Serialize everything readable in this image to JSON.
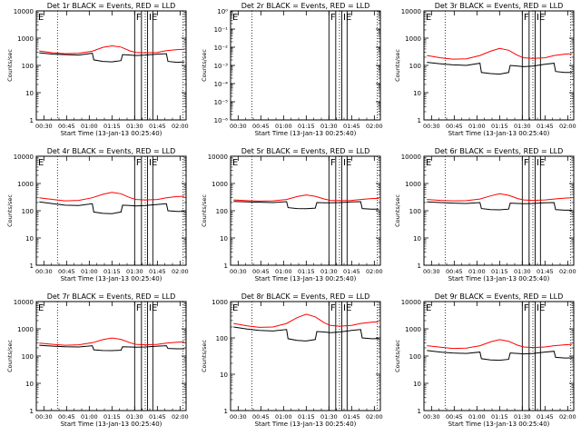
{
  "figure": {
    "axis_ylabel": "Counts/sec",
    "xlabel": "Start Time (13-Jan-13 00:25:40)",
    "xtick_labels": [
      "00:30",
      "00:45",
      "01:00",
      "01:15",
      "01:30",
      "01:45",
      "02:00"
    ],
    "colors": {
      "events": "#000000",
      "lld": "#ff0000",
      "background": "#ffffff"
    }
  },
  "chart_data": [
    {
      "type": "line",
      "title": "Det 1r BLACK = Events, RED = LLD",
      "ylabel": "Counts/sec",
      "xlabel": "Start Time (13-Jan-13 00:25:40)",
      "yscale": "log",
      "ylim": [
        1,
        10000
      ],
      "yticks": [
        1,
        10,
        100,
        1000,
        10000
      ],
      "ytick_labels": [
        "1",
        "10",
        "100",
        "1000",
        "10000"
      ],
      "xlim": [
        "00:25",
        "02:04"
      ],
      "xticks": [
        "00:30",
        "00:45",
        "01:00",
        "01:15",
        "01:30",
        "01:45",
        "02:00"
      ],
      "flag_labels": [
        "E",
        "F",
        "IE"
      ],
      "series": [
        {
          "color": "#000000",
          "x": [
            "00:27",
            "00:36",
            "00:44",
            "00:53",
            "01:02",
            "01:03",
            "01:09",
            "01:15",
            "01:21",
            "01:22",
            "01:27",
            "01:31",
            "01:37",
            "01:45",
            "01:51",
            "01:52",
            "01:58",
            "02:03"
          ],
          "values": [
            290,
            260,
            250,
            240,
            280,
            160,
            140,
            135,
            150,
            250,
            240,
            230,
            240,
            260,
            270,
            140,
            130,
            135
          ]
        },
        {
          "color": "#ff0000",
          "x": [
            "00:27",
            "00:36",
            "00:44",
            "00:53",
            "01:02",
            "01:09",
            "01:15",
            "01:21",
            "01:27",
            "01:31",
            "01:37",
            "01:45",
            "01:51",
            "01:58",
            "02:03"
          ],
          "values": [
            340,
            290,
            270,
            280,
            330,
            460,
            520,
            470,
            340,
            300,
            290,
            300,
            350,
            380,
            390
          ]
        }
      ]
    },
    {
      "type": "line",
      "title": "Det 2r BLACK = Events, RED = LLD",
      "ylabel": "Counts/sec",
      "xlabel": "Start Time (13-Jan-13 00:25:40)",
      "yscale": "log",
      "ylim": [
        1e-06,
        1
      ],
      "yticks": [
        1e-06,
        1e-05,
        0.0001,
        0.001,
        0.01,
        0.1,
        1
      ],
      "ytick_labels": [
        "10⁻⁶",
        "10⁻⁵",
        "10⁻⁴",
        "10⁻³",
        "10⁻²",
        "10⁻¹",
        "10⁰"
      ],
      "xlim": [
        "00:25",
        "02:04"
      ],
      "xticks": [
        "00:30",
        "00:45",
        "01:00",
        "01:15",
        "01:30",
        "01:45",
        "02:00"
      ],
      "flag_labels": [
        "E",
        "F",
        "IE"
      ],
      "series": []
    },
    {
      "type": "line",
      "title": "Det 3r BLACK = Events, RED = LLD",
      "ylabel": "Counts/sec",
      "xlabel": "Start Time (13-Jan-13 00:25:40)",
      "yscale": "log",
      "ylim": [
        1,
        10000
      ],
      "yticks": [
        1,
        10,
        100,
        1000,
        10000
      ],
      "ytick_labels": [
        "1",
        "10",
        "100",
        "1000",
        "10000"
      ],
      "xlim": [
        "00:25",
        "02:04"
      ],
      "xticks": [
        "00:30",
        "00:45",
        "01:00",
        "01:15",
        "01:30",
        "01:45",
        "02:00"
      ],
      "flag_labels": [
        "E",
        "F",
        "IE"
      ],
      "series": [
        {
          "color": "#000000",
          "x": [
            "00:27",
            "00:36",
            "00:44",
            "00:53",
            "01:02",
            "01:03",
            "01:09",
            "01:15",
            "01:21",
            "01:22",
            "01:27",
            "01:31",
            "01:37",
            "01:45",
            "01:51",
            "01:52",
            "01:58",
            "02:03"
          ],
          "values": [
            130,
            115,
            105,
            100,
            120,
            55,
            50,
            48,
            55,
            100,
            95,
            90,
            95,
            110,
            120,
            60,
            55,
            55
          ]
        },
        {
          "color": "#ff0000",
          "x": [
            "00:27",
            "00:36",
            "00:44",
            "00:53",
            "01:02",
            "01:09",
            "01:15",
            "01:21",
            "01:27",
            "01:31",
            "01:37",
            "01:45",
            "01:51",
            "01:58",
            "02:03"
          ],
          "values": [
            230,
            190,
            170,
            175,
            230,
            330,
            420,
            360,
            230,
            190,
            180,
            190,
            230,
            260,
            270
          ]
        }
      ]
    },
    {
      "type": "line",
      "title": "Det 4r BLACK = Events, RED = LLD",
      "ylabel": "Counts/sec",
      "xlabel": "Start Time (13-Jan-13 00:25:40)",
      "yscale": "log",
      "ylim": [
        1,
        10000
      ],
      "yticks": [
        1,
        10,
        100,
        1000,
        10000
      ],
      "ytick_labels": [
        "1",
        "10",
        "100",
        "1000",
        "10000"
      ],
      "xlim": [
        "00:25",
        "02:04"
      ],
      "xticks": [
        "00:30",
        "00:45",
        "01:00",
        "01:15",
        "01:30",
        "01:45",
        "02:00"
      ],
      "flag_labels": [
        "E",
        "F",
        "IE"
      ],
      "series": [
        {
          "color": "#000000",
          "x": [
            "00:27",
            "00:36",
            "00:44",
            "00:53",
            "01:02",
            "01:03",
            "01:09",
            "01:15",
            "01:21",
            "01:22",
            "01:27",
            "01:31",
            "01:37",
            "01:45",
            "01:51",
            "01:52",
            "01:58",
            "02:03"
          ],
          "values": [
            210,
            180,
            160,
            155,
            180,
            90,
            80,
            78,
            90,
            160,
            155,
            150,
            155,
            170,
            180,
            100,
            95,
            95
          ]
        },
        {
          "color": "#ff0000",
          "x": [
            "00:27",
            "00:36",
            "00:44",
            "00:53",
            "01:02",
            "01:09",
            "01:15",
            "01:21",
            "01:27",
            "01:31",
            "01:37",
            "01:45",
            "01:51",
            "01:58",
            "02:03"
          ],
          "values": [
            300,
            260,
            230,
            240,
            300,
            400,
            470,
            420,
            300,
            260,
            250,
            260,
            300,
            330,
            340
          ]
        }
      ]
    },
    {
      "type": "line",
      "title": "Det 5r BLACK = Events, RED = LLD",
      "ylabel": "Counts/sec",
      "xlabel": "Start Time (13-Jan-13 00:25:40)",
      "yscale": "log",
      "ylim": [
        1,
        10000
      ],
      "yticks": [
        1,
        10,
        100,
        1000,
        10000
      ],
      "ytick_labels": [
        "1",
        "10",
        "100",
        "1000",
        "10000"
      ],
      "xlim": [
        "00:25",
        "02:04"
      ],
      "xticks": [
        "00:30",
        "00:45",
        "01:00",
        "01:15",
        "01:30",
        "01:45",
        "02:00"
      ],
      "flag_labels": [
        "E",
        "F",
        "IE"
      ],
      "series": [
        {
          "color": "#000000",
          "x": [
            "00:27",
            "00:36",
            "00:44",
            "00:53",
            "01:02",
            "01:03",
            "01:09",
            "01:15",
            "01:21",
            "01:22",
            "01:27",
            "01:31",
            "01:37",
            "01:45",
            "01:51",
            "01:52",
            "01:58",
            "02:03"
          ],
          "values": [
            220,
            210,
            205,
            200,
            215,
            130,
            120,
            118,
            125,
            200,
            195,
            195,
            200,
            210,
            215,
            120,
            115,
            115
          ]
        },
        {
          "color": "#ff0000",
          "x": [
            "00:27",
            "00:36",
            "00:44",
            "00:53",
            "01:02",
            "01:09",
            "01:15",
            "01:21",
            "01:27",
            "01:31",
            "01:37",
            "01:45",
            "01:51",
            "01:58",
            "02:03"
          ],
          "values": [
            250,
            235,
            225,
            230,
            260,
            330,
            380,
            340,
            270,
            240,
            235,
            240,
            260,
            280,
            285
          ]
        }
      ]
    },
    {
      "type": "line",
      "title": "Det 6r BLACK = Events, RED = LLD",
      "ylabel": "Counts/sec",
      "xlabel": "Start Time (13-Jan-13 00:25:40)",
      "yscale": "log",
      "ylim": [
        1,
        10000
      ],
      "yticks": [
        1,
        10,
        100,
        1000,
        10000
      ],
      "ytick_labels": [
        "1",
        "10",
        "100",
        "1000",
        "10000"
      ],
      "xlim": [
        "00:25",
        "02:04"
      ],
      "xticks": [
        "00:30",
        "00:45",
        "01:00",
        "01:15",
        "01:30",
        "01:45",
        "02:00"
      ],
      "flag_labels": [
        "E",
        "F",
        "IE"
      ],
      "series": [
        {
          "color": "#000000",
          "x": [
            "00:27",
            "00:36",
            "00:44",
            "00:53",
            "01:02",
            "01:03",
            "01:09",
            "01:15",
            "01:21",
            "01:22",
            "01:27",
            "01:31",
            "01:37",
            "01:45",
            "01:51",
            "01:52",
            "01:58",
            "02:03"
          ],
          "values": [
            210,
            200,
            190,
            185,
            200,
            120,
            110,
            108,
            115,
            190,
            185,
            180,
            185,
            195,
            200,
            110,
            105,
            105
          ]
        },
        {
          "color": "#ff0000",
          "x": [
            "00:27",
            "00:36",
            "00:44",
            "00:53",
            "01:02",
            "01:09",
            "01:15",
            "01:21",
            "01:27",
            "01:31",
            "01:37",
            "01:45",
            "01:51",
            "01:58",
            "02:03"
          ],
          "values": [
            260,
            240,
            230,
            235,
            270,
            350,
            420,
            370,
            280,
            250,
            240,
            250,
            270,
            290,
            300
          ]
        }
      ]
    },
    {
      "type": "line",
      "title": "Det 7r BLACK = Events, RED = LLD",
      "ylabel": "Counts/sec",
      "xlabel": "Start Time (13-Jan-13 00:25:40)",
      "yscale": "log",
      "ylim": [
        1,
        10000
      ],
      "yticks": [
        1,
        10,
        100,
        1000,
        10000
      ],
      "ytick_labels": [
        "1",
        "10",
        "100",
        "1000",
        "10000"
      ],
      "xlim": [
        "00:25",
        "02:04"
      ],
      "xticks": [
        "00:30",
        "00:45",
        "01:00",
        "01:15",
        "01:30",
        "01:45",
        "02:00"
      ],
      "flag_labels": [
        "E",
        "F",
        "IE"
      ],
      "series": [
        {
          "color": "#000000",
          "x": [
            "00:27",
            "00:36",
            "00:44",
            "00:53",
            "01:02",
            "01:03",
            "01:09",
            "01:15",
            "01:21",
            "01:22",
            "01:27",
            "01:31",
            "01:37",
            "01:45",
            "01:51",
            "01:52",
            "01:58",
            "02:03"
          ],
          "values": [
            250,
            230,
            220,
            215,
            240,
            170,
            160,
            158,
            165,
            220,
            215,
            210,
            215,
            230,
            240,
            190,
            185,
            185
          ]
        },
        {
          "color": "#ff0000",
          "x": [
            "00:27",
            "00:36",
            "00:44",
            "00:53",
            "01:02",
            "01:09",
            "01:15",
            "01:21",
            "01:27",
            "01:31",
            "01:37",
            "01:45",
            "01:51",
            "01:58",
            "02:03"
          ],
          "values": [
            300,
            270,
            250,
            260,
            310,
            400,
            460,
            410,
            310,
            270,
            260,
            270,
            300,
            320,
            330
          ]
        }
      ]
    },
    {
      "type": "line",
      "title": "Det 8r BLACK = Events, RED = LLD",
      "ylabel": "Counts/sec",
      "xlabel": "Start Time (13-Jan-13 00:25:40)",
      "yscale": "log",
      "ylim": [
        1,
        1000
      ],
      "yticks": [
        1,
        10,
        100,
        1000
      ],
      "ytick_labels": [
        "1",
        "10",
        "100",
        "1000"
      ],
      "xlim": [
        "00:25",
        "02:04"
      ],
      "xticks": [
        "00:30",
        "00:45",
        "01:00",
        "01:15",
        "01:30",
        "01:45",
        "02:00"
      ],
      "flag_labels": [
        "E",
        "F",
        "IE"
      ],
      "series": [
        {
          "color": "#000000",
          "x": [
            "00:27",
            "00:36",
            "00:44",
            "00:53",
            "01:02",
            "01:03",
            "01:09",
            "01:15",
            "01:21",
            "01:22",
            "01:27",
            "01:31",
            "01:37",
            "01:45",
            "01:51",
            "01:52",
            "01:58",
            "02:03"
          ],
          "values": [
            200,
            175,
            160,
            155,
            170,
            95,
            85,
            82,
            90,
            150,
            145,
            140,
            145,
            160,
            170,
            100,
            95,
            95
          ]
        },
        {
          "color": "#ff0000",
          "x": [
            "00:27",
            "00:36",
            "00:44",
            "00:53",
            "01:02",
            "01:09",
            "01:15",
            "01:21",
            "01:27",
            "01:31",
            "01:37",
            "01:45",
            "01:51",
            "01:58",
            "02:03"
          ],
          "values": [
            250,
            215,
            195,
            200,
            250,
            360,
            450,
            380,
            260,
            220,
            210,
            220,
            250,
            270,
            280
          ]
        }
      ]
    },
    {
      "type": "line",
      "title": "Det 9r BLACK = Events, RED = LLD",
      "ylabel": "Counts/sec",
      "xlabel": "Start Time (13-Jan-13 00:25:40)",
      "yscale": "log",
      "ylim": [
        1,
        10000
      ],
      "yticks": [
        1,
        10,
        100,
        1000,
        10000
      ],
      "ytick_labels": [
        "1",
        "10",
        "100",
        "1000",
        "10000"
      ],
      "xlim": [
        "00:25",
        "02:04"
      ],
      "xticks": [
        "00:30",
        "00:45",
        "01:00",
        "01:15",
        "01:30",
        "01:45",
        "02:00"
      ],
      "flag_labels": [
        "E",
        "F",
        "IE"
      ],
      "series": [
        {
          "color": "#000000",
          "x": [
            "00:27",
            "00:36",
            "00:44",
            "00:53",
            "01:02",
            "01:03",
            "01:09",
            "01:15",
            "01:21",
            "01:22",
            "01:27",
            "01:31",
            "01:37",
            "01:45",
            "01:51",
            "01:52",
            "01:58",
            "02:03"
          ],
          "values": [
            160,
            140,
            130,
            125,
            140,
            80,
            72,
            70,
            76,
            130,
            125,
            120,
            125,
            140,
            150,
            90,
            85,
            85
          ]
        },
        {
          "color": "#ff0000",
          "x": [
            "00:27",
            "00:36",
            "00:44",
            "00:53",
            "01:02",
            "01:09",
            "01:15",
            "01:21",
            "01:27",
            "01:31",
            "01:37",
            "01:45",
            "01:51",
            "01:58",
            "02:03"
          ],
          "values": [
            240,
            210,
            190,
            195,
            240,
            330,
            400,
            350,
            250,
            215,
            205,
            215,
            240,
            260,
            270
          ]
        }
      ]
    }
  ]
}
